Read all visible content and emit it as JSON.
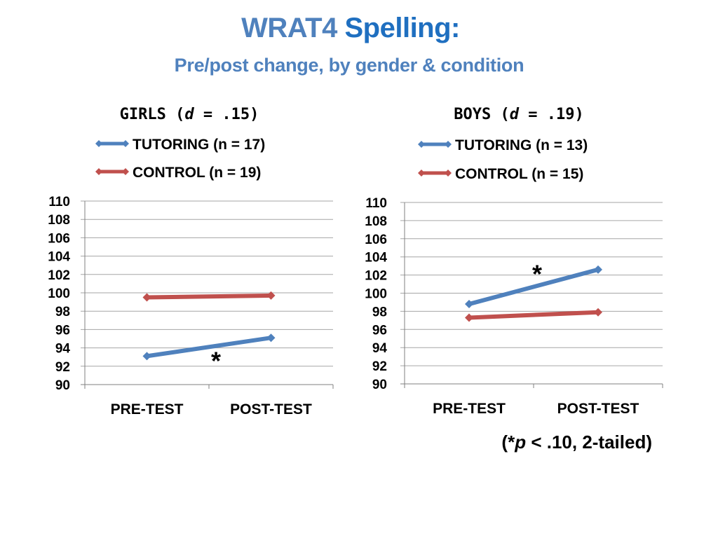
{
  "title": {
    "part1": "WRAT4",
    "part2": "Spelling:",
    "subtitle": "Pre/post change, by gender & condition"
  },
  "footnote": {
    "open": "(*",
    "p": "p",
    "rest": " < .10, 2-tailed)"
  },
  "colors": {
    "tutoring": "#4F81BD",
    "control": "#C0504D",
    "grid": "#A6A6A6",
    "title": "#4F81BD"
  },
  "chart_data": [
    {
      "type": "line",
      "title": "GIRLS (d = .15)",
      "title_parts": {
        "pre": "GIRLS (",
        "italic": "d",
        "post": " = .15)"
      },
      "categories": [
        "PRE-TEST",
        "POST-TEST"
      ],
      "series": [
        {
          "name": "TUTORING (n = 17)",
          "key": "tutoring",
          "values": [
            93.1,
            95.1
          ]
        },
        {
          "name": "CONTROL (n = 19)",
          "key": "control",
          "values": [
            99.5,
            99.7
          ]
        }
      ],
      "ylim": [
        90,
        110
      ],
      "yticks": [
        "90",
        "92",
        "94",
        "96",
        "98",
        "100",
        "102",
        "104",
        "106",
        "108",
        "110"
      ],
      "grid": true,
      "legend": "top",
      "annotation": {
        "text": "*",
        "series": "tutoring",
        "between": [
          "PRE-TEST",
          "POST-TEST"
        ],
        "position": "below"
      }
    },
    {
      "type": "line",
      "title": "BOYS (d = .19)",
      "title_parts": {
        "pre": "BOYS (",
        "italic": "d",
        "post": "  = .19)"
      },
      "categories": [
        "PRE-TEST",
        "POST-TEST"
      ],
      "series": [
        {
          "name": "TUTORING (n = 13)",
          "key": "tutoring",
          "values": [
            98.8,
            102.6
          ]
        },
        {
          "name": "CONTROL (n = 15)",
          "key": "control",
          "values": [
            97.3,
            97.9
          ]
        }
      ],
      "ylim": [
        90,
        110
      ],
      "yticks": [
        "90",
        "92",
        "94",
        "96",
        "98",
        "100",
        "102",
        "104",
        "106",
        "108",
        "110"
      ],
      "grid": true,
      "legend": "top",
      "annotation": {
        "text": "*",
        "series": "tutoring",
        "between": [
          "PRE-TEST",
          "POST-TEST"
        ],
        "position": "above"
      }
    }
  ]
}
